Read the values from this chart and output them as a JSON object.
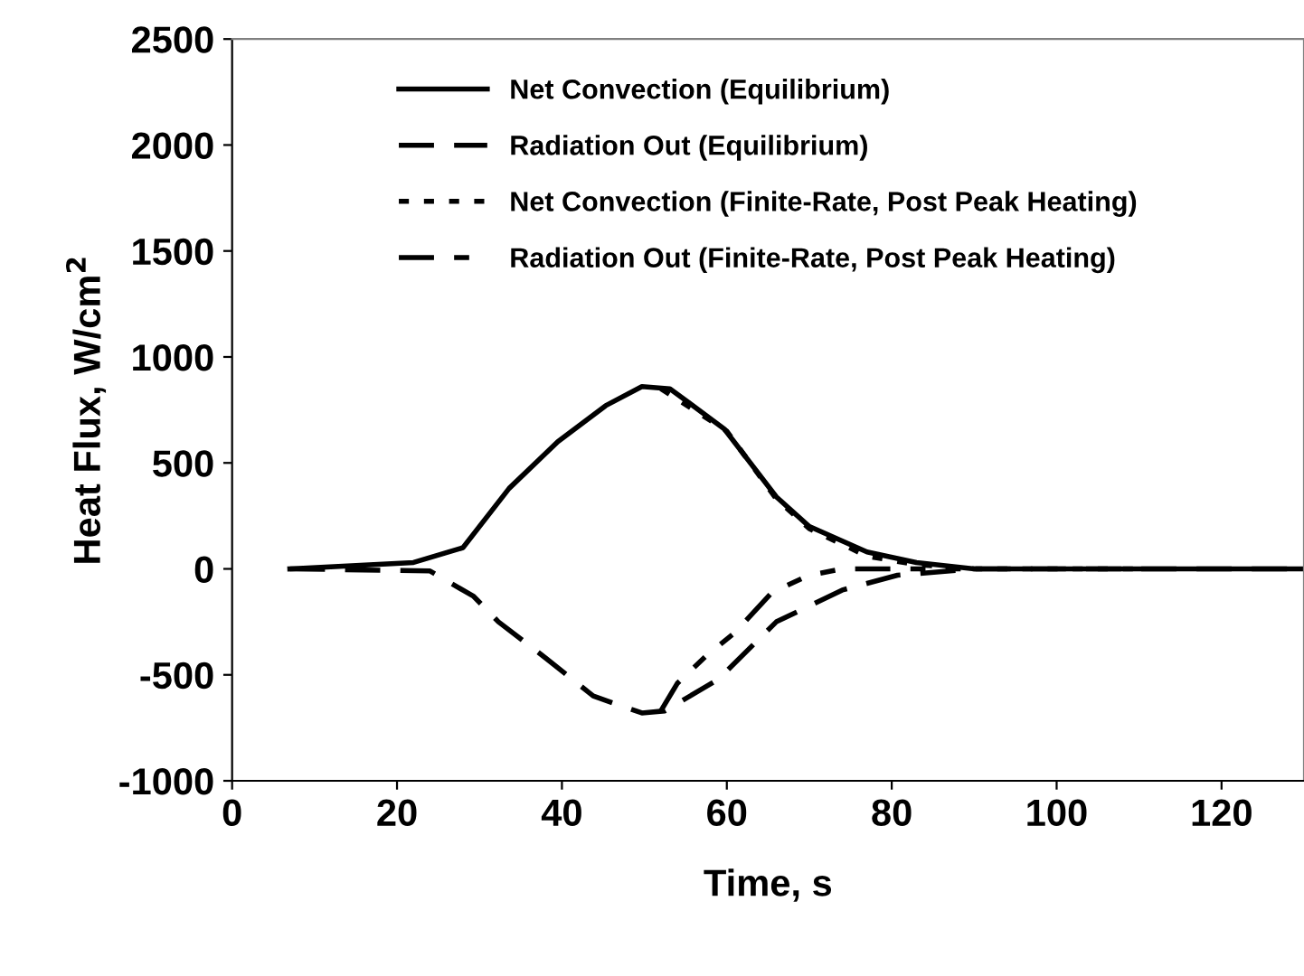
{
  "chart_data": {
    "type": "line",
    "xlabel": "Time, s",
    "ylabel": "Heat Flux, W/cm$^{2}$",
    "xlim": [
      0,
      130
    ],
    "xticks": [
      0,
      20,
      40,
      60,
      80,
      100,
      120
    ],
    "ylim": [
      -1000,
      2500
    ],
    "yticks": [
      -1000,
      -500,
      0,
      500,
      1000,
      1500,
      2000,
      2500
    ],
    "grid": false,
    "legend": "top",
    "marker": "none",
    "series": [
      {
        "name": "Net Convection (Equilibrium)",
        "color": "#000000",
        "line_style": "solid",
        "x": [
          7,
          22,
          28,
          33.6,
          39.5,
          45.3,
          49.7,
          53.1,
          59.7,
          66,
          70,
          77,
          83,
          90,
          130
        ],
        "values": [
          0,
          30,
          100,
          380,
          600,
          770,
          860,
          850,
          660,
          340,
          200,
          80,
          30,
          0,
          0
        ]
      },
      {
        "name": "Radiation Out (Equilibrium)",
        "color": "#000000",
        "line_style": "dashed",
        "x": [
          7,
          24,
          29.3,
          32.3,
          38,
          43.8,
          49.7,
          52.5,
          59,
          66,
          74,
          80.7,
          90,
          130
        ],
        "values": [
          0,
          -10,
          -130,
          -250,
          -420,
          -600,
          -680,
          -670,
          -520,
          -250,
          -100,
          -30,
          0,
          0
        ]
      },
      {
        "name": "Net Convection (Finite-Rate, Post Peak Heating)",
        "color": "#000000",
        "line_style": "dotted",
        "x": [
          52,
          60,
          66,
          70,
          77,
          83,
          90,
          110
        ],
        "values": [
          850,
          650,
          330,
          190,
          60,
          20,
          0,
          0
        ]
      },
      {
        "name": "Radiation Out (Finite-Rate, Post Peak Heating)",
        "color": "#000000",
        "line_style": "dashdot",
        "x": [
          52,
          54,
          57.5,
          61,
          65.5,
          70,
          74,
          90
        ],
        "values": [
          -670,
          -540,
          -410,
          -300,
          -110,
          -30,
          0,
          0
        ]
      }
    ]
  }
}
